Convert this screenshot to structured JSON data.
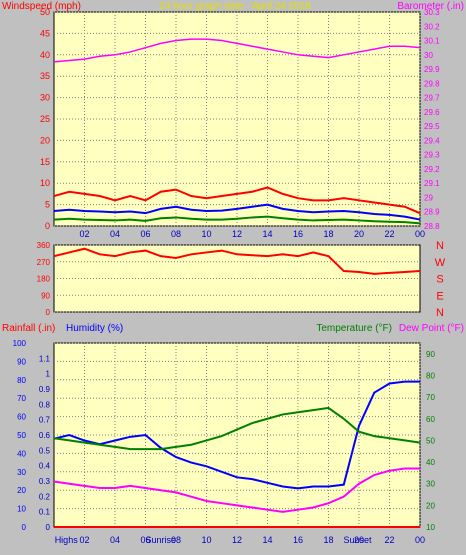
{
  "colors": {
    "bg": "#c0c0c0",
    "plot": "#ffffc0",
    "grid": "#808080",
    "red": "#ff0000",
    "blue": "#0000ff",
    "green": "#008000",
    "magenta": "#ff00ff",
    "yellow": "#e0e000",
    "navy": "#0000c0"
  },
  "chart_data": [
    {
      "type": "line",
      "title": "24 hour graph date - April 24 2018",
      "ylabel_left": "Windspeed (mph)",
      "ylabel_right": "Barometer (.in)",
      "x_ticks": [
        "02",
        "04",
        "06",
        "08",
        "10",
        "12",
        "14",
        "16",
        "18",
        "20",
        "22",
        "00"
      ],
      "ylim_left": [
        0,
        50
      ],
      "y_ticks_left": [
        "0",
        "5",
        "10",
        "15",
        "20",
        "25",
        "30",
        "35",
        "40",
        "45",
        "50"
      ],
      "ylim_right": [
        28.8,
        30.3
      ],
      "y_ticks_right": [
        "28.8",
        "28.9",
        "29",
        "29.1",
        "29.2",
        "29.3",
        "29.4",
        "29.5",
        "29.6",
        "29.7",
        "29.8",
        "29.9",
        "30",
        "30.1",
        "30.2",
        "30.3"
      ],
      "series": [
        {
          "color": "red",
          "x": [
            0,
            1,
            2,
            3,
            4,
            5,
            6,
            7,
            8,
            9,
            10,
            11,
            12,
            13,
            14,
            15,
            16,
            17,
            18,
            19,
            20,
            21,
            22,
            23,
            24
          ],
          "values": [
            7,
            8,
            7.5,
            7,
            6,
            7,
            6,
            8,
            8.5,
            7,
            6.5,
            7,
            7.5,
            8,
            9,
            7.5,
            6.5,
            6,
            6,
            6.5,
            6,
            5.5,
            5,
            4.5,
            3
          ]
        },
        {
          "color": "blue",
          "x": [
            0,
            1,
            2,
            3,
            4,
            5,
            6,
            7,
            8,
            9,
            10,
            11,
            12,
            13,
            14,
            15,
            16,
            17,
            18,
            19,
            20,
            21,
            22,
            23,
            24
          ],
          "values": [
            3.5,
            3.8,
            3.5,
            3.4,
            3.2,
            3.4,
            3,
            4,
            4.5,
            3.8,
            3.5,
            3.6,
            4,
            4.5,
            5,
            4,
            3.5,
            3.2,
            3.4,
            3.5,
            3.2,
            2.8,
            2.6,
            2.2,
            1.5
          ]
        },
        {
          "color": "green",
          "x": [
            0,
            1,
            2,
            3,
            4,
            5,
            6,
            7,
            8,
            9,
            10,
            11,
            12,
            13,
            14,
            15,
            16,
            17,
            18,
            19,
            20,
            21,
            22,
            23,
            24
          ],
          "values": [
            1.5,
            1.7,
            1.5,
            1.4,
            1.3,
            1.5,
            1.2,
            1.8,
            2,
            1.7,
            1.5,
            1.5,
            1.7,
            2,
            2.2,
            1.8,
            1.5,
            1.3,
            1.4,
            1.5,
            1.3,
            1.1,
            1,
            0.9,
            0.6
          ]
        },
        {
          "color": "magenta",
          "axis": "right",
          "x": [
            0,
            1,
            2,
            3,
            4,
            5,
            6,
            7,
            8,
            9,
            10,
            11,
            12,
            13,
            14,
            15,
            16,
            17,
            18,
            19,
            20,
            21,
            22,
            23,
            24
          ],
          "values": [
            29.95,
            29.96,
            29.97,
            29.99,
            30.0,
            30.02,
            30.05,
            30.08,
            30.1,
            30.11,
            30.11,
            30.1,
            30.08,
            30.06,
            30.04,
            30.02,
            30.0,
            29.99,
            29.98,
            30.0,
            30.02,
            30.04,
            30.06,
            30.06,
            30.05
          ]
        }
      ]
    },
    {
      "type": "line",
      "title": "",
      "ylabel_right": [
        "N",
        "W",
        "S",
        "E",
        "N"
      ],
      "ylim": [
        0,
        360
      ],
      "y_ticks": [
        "0",
        "90",
        "180",
        "270",
        "360"
      ],
      "series": [
        {
          "color": "red",
          "x": [
            0,
            1,
            2,
            3,
            4,
            5,
            6,
            7,
            8,
            9,
            10,
            11,
            12,
            13,
            14,
            15,
            16,
            17,
            18,
            19,
            20,
            21,
            22,
            23,
            24
          ],
          "values": [
            300,
            320,
            340,
            310,
            300,
            320,
            330,
            300,
            290,
            310,
            320,
            330,
            310,
            305,
            300,
            310,
            300,
            320,
            300,
            220,
            215,
            205,
            210,
            215,
            220
          ]
        }
      ]
    },
    {
      "type": "line",
      "title": "",
      "ylabel_left": "Rainfall (.in)",
      "ylabel_left2": "Humidity (%)",
      "ylabel_right": "Temperature (°F)",
      "ylabel_right2": "Dew Point (°F)",
      "x_ticks": [
        "02",
        "04",
        "06",
        "08",
        "10",
        "12",
        "14",
        "16",
        "18",
        "20",
        "22",
        "00"
      ],
      "annotations": [
        "Highs",
        "Sunrise",
        "Sunset"
      ],
      "ylim_humidity": [
        0,
        100
      ],
      "y_ticks_humidity": [
        "0",
        "10",
        "20",
        "30",
        "40",
        "50",
        "60",
        "70",
        "80",
        "90",
        "100"
      ],
      "ylim_rain": [
        0,
        1.2
      ],
      "y_ticks_rain": [
        "0",
        "0.1",
        "0.2",
        "0.3",
        "0.4",
        "0.5",
        "0.6",
        "0.7",
        "0.8",
        "0.9",
        "1",
        "1.1"
      ],
      "ylim_temp": [
        10,
        95
      ],
      "y_ticks_temp": [
        "10",
        "20",
        "30",
        "40",
        "50",
        "60",
        "70",
        "80",
        "90"
      ],
      "series": [
        {
          "name": "Humidity (%)",
          "color": "blue",
          "axis": "humidity",
          "x": [
            0,
            1,
            2,
            3,
            4,
            5,
            6,
            7,
            8,
            9,
            10,
            11,
            12,
            13,
            14,
            15,
            16,
            17,
            18,
            19,
            20,
            21,
            22,
            23,
            24
          ],
          "values": [
            48,
            50,
            47,
            45,
            47,
            49,
            50,
            43,
            38,
            35,
            33,
            30,
            27,
            26,
            24,
            22,
            21,
            22,
            22,
            23,
            55,
            73,
            78,
            79,
            79
          ]
        },
        {
          "name": "Temperature (°F)",
          "color": "green",
          "axis": "temp",
          "x": [
            0,
            1,
            2,
            3,
            4,
            5,
            6,
            7,
            8,
            9,
            10,
            11,
            12,
            13,
            14,
            15,
            16,
            17,
            18,
            19,
            20,
            21,
            22,
            23,
            24
          ],
          "values": [
            51,
            50,
            49,
            48,
            47,
            46,
            46,
            46,
            47,
            48,
            50,
            52,
            55,
            58,
            60,
            62,
            63,
            64,
            65,
            60,
            54,
            52,
            51,
            50,
            49
          ]
        },
        {
          "name": "Dew Point (°F)",
          "color": "magenta",
          "axis": "temp",
          "x": [
            0,
            1,
            2,
            3,
            4,
            5,
            6,
            7,
            8,
            9,
            10,
            11,
            12,
            13,
            14,
            15,
            16,
            17,
            18,
            19,
            20,
            21,
            22,
            23,
            24
          ],
          "values": [
            31,
            30,
            29,
            28,
            28,
            29,
            28,
            27,
            26,
            24,
            22,
            21,
            20,
            19,
            18,
            17,
            18,
            19,
            21,
            24,
            30,
            34,
            36,
            37,
            37
          ]
        },
        {
          "name": "Rainfall (.in)",
          "color": "red",
          "axis": "rain",
          "x": [
            0,
            24
          ],
          "values": [
            0,
            0
          ]
        }
      ]
    }
  ]
}
